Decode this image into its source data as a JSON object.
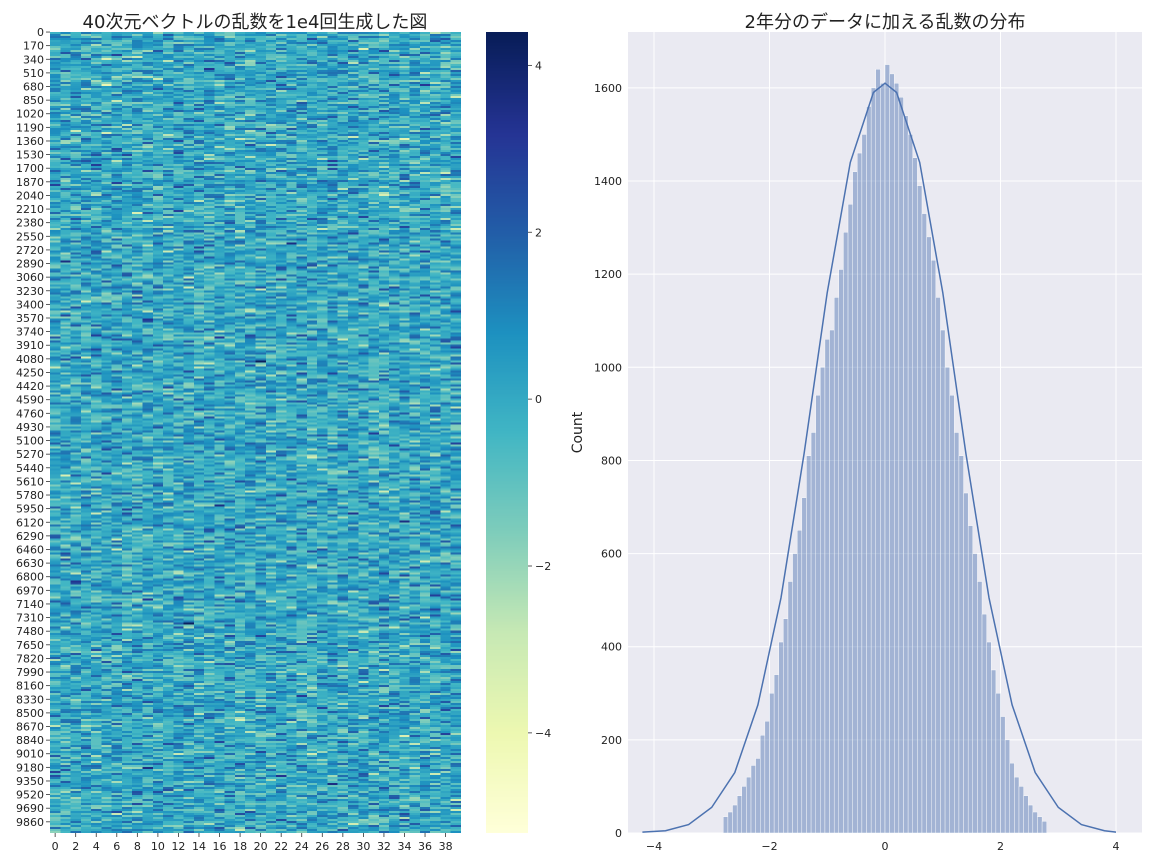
{
  "chart_data": [
    {
      "type": "heatmap",
      "title": "40次元ベクトルの乱数を1e4回生成した図",
      "rows": 10000,
      "cols": 40,
      "colormap": "YlGnBu",
      "value_range": [
        -5.2,
        4.4
      ],
      "x_tick_labels": [
        "0",
        "2",
        "4",
        "6",
        "8",
        "10",
        "12",
        "14",
        "16",
        "18",
        "20",
        "22",
        "24",
        "26",
        "28",
        "30",
        "32",
        "34",
        "36",
        "38"
      ],
      "y_tick_labels": [
        "0",
        "170",
        "340",
        "510",
        "680",
        "850",
        "1020",
        "1190",
        "1360",
        "1530",
        "1700",
        "1870",
        "2040",
        "2210",
        "2380",
        "2550",
        "2720",
        "2890",
        "3060",
        "3230",
        "3400",
        "3570",
        "3740",
        "3910",
        "4080",
        "4250",
        "4420",
        "4590",
        "4760",
        "4930",
        "5100",
        "5270",
        "5440",
        "5610",
        "5780",
        "5950",
        "6120",
        "6290",
        "6460",
        "6630",
        "6800",
        "6970",
        "7140",
        "7310",
        "7480",
        "7650",
        "7820",
        "7990",
        "8160",
        "8330",
        "8500",
        "8670",
        "8840",
        "9010",
        "9180",
        "9350",
        "9520",
        "9690",
        "9860"
      ],
      "colorbar_ticks": [
        4,
        2,
        0,
        -2,
        -4
      ],
      "colorbar_tick_labels": [
        "4",
        "2",
        "0",
        "−2",
        "−4"
      ]
    },
    {
      "type": "bar",
      "subtype": "histogram_with_kde",
      "title": "2年分のデータに加える乱数の分布",
      "ylabel": "Count",
      "xlabel": "",
      "xlim": [
        -4.45,
        4.45
      ],
      "ylim": [
        0,
        1720
      ],
      "x_ticks": [
        -4,
        -2,
        0,
        2,
        4
      ],
      "x_tick_labels": [
        "−4",
        "−2",
        "0",
        "2",
        "4"
      ],
      "y_ticks": [
        0,
        200,
        400,
        600,
        800,
        1000,
        1200,
        1400,
        1600
      ],
      "y_tick_labels": [
        "0",
        "200",
        "400",
        "600",
        "800",
        "1000",
        "1200",
        "1400",
        "1600"
      ],
      "grid": true,
      "bin_width": 0.08,
      "bins_x": [
        -2.8,
        -2.72,
        -2.64,
        -2.56,
        -2.48,
        -2.4,
        -2.32,
        -2.24,
        -2.16,
        -2.08,
        -2.0,
        -1.92,
        -1.84,
        -1.76,
        -1.68,
        -1.6,
        -1.52,
        -1.44,
        -1.36,
        -1.28,
        -1.2,
        -1.12,
        -1.04,
        -0.96,
        -0.88,
        -0.8,
        -0.72,
        -0.64,
        -0.56,
        -0.48,
        -0.4,
        -0.32,
        -0.24,
        -0.16,
        -0.08,
        0.0,
        0.08,
        0.16,
        0.24,
        0.32,
        0.4,
        0.48,
        0.56,
        0.64,
        0.72,
        0.8,
        0.88,
        0.96,
        1.04,
        1.12,
        1.2,
        1.28,
        1.36,
        1.44,
        1.52,
        1.6,
        1.68,
        1.76,
        1.84,
        1.92,
        2.0,
        2.08,
        2.16,
        2.24,
        2.32,
        2.4,
        2.48,
        2.56,
        2.64,
        2.72
      ],
      "counts": [
        35,
        45,
        60,
        80,
        100,
        120,
        145,
        160,
        210,
        240,
        300,
        340,
        410,
        460,
        540,
        600,
        650,
        720,
        810,
        860,
        940,
        1000,
        1060,
        1080,
        1150,
        1210,
        1290,
        1350,
        1420,
        1460,
        1500,
        1560,
        1600,
        1640,
        1610,
        1650,
        1630,
        1610,
        1580,
        1540,
        1500,
        1450,
        1390,
        1330,
        1280,
        1230,
        1150,
        1080,
        1000,
        940,
        860,
        810,
        730,
        660,
        600,
        540,
        470,
        410,
        350,
        300,
        250,
        200,
        150,
        120,
        100,
        80,
        60,
        45,
        35,
        25
      ],
      "kde": {
        "x": [
          -4.2,
          -3.8,
          -3.4,
          -3.0,
          -2.6,
          -2.2,
          -1.8,
          -1.4,
          -1.0,
          -0.6,
          -0.2,
          0.0,
          0.2,
          0.6,
          1.0,
          1.4,
          1.8,
          2.2,
          2.6,
          3.0,
          3.4,
          3.8,
          4.0
        ],
        "y": [
          2,
          5,
          18,
          55,
          130,
          275,
          505,
          815,
          1160,
          1440,
          1590,
          1610,
          1590,
          1440,
          1160,
          815,
          505,
          275,
          130,
          55,
          18,
          5,
          2
        ]
      }
    }
  ]
}
